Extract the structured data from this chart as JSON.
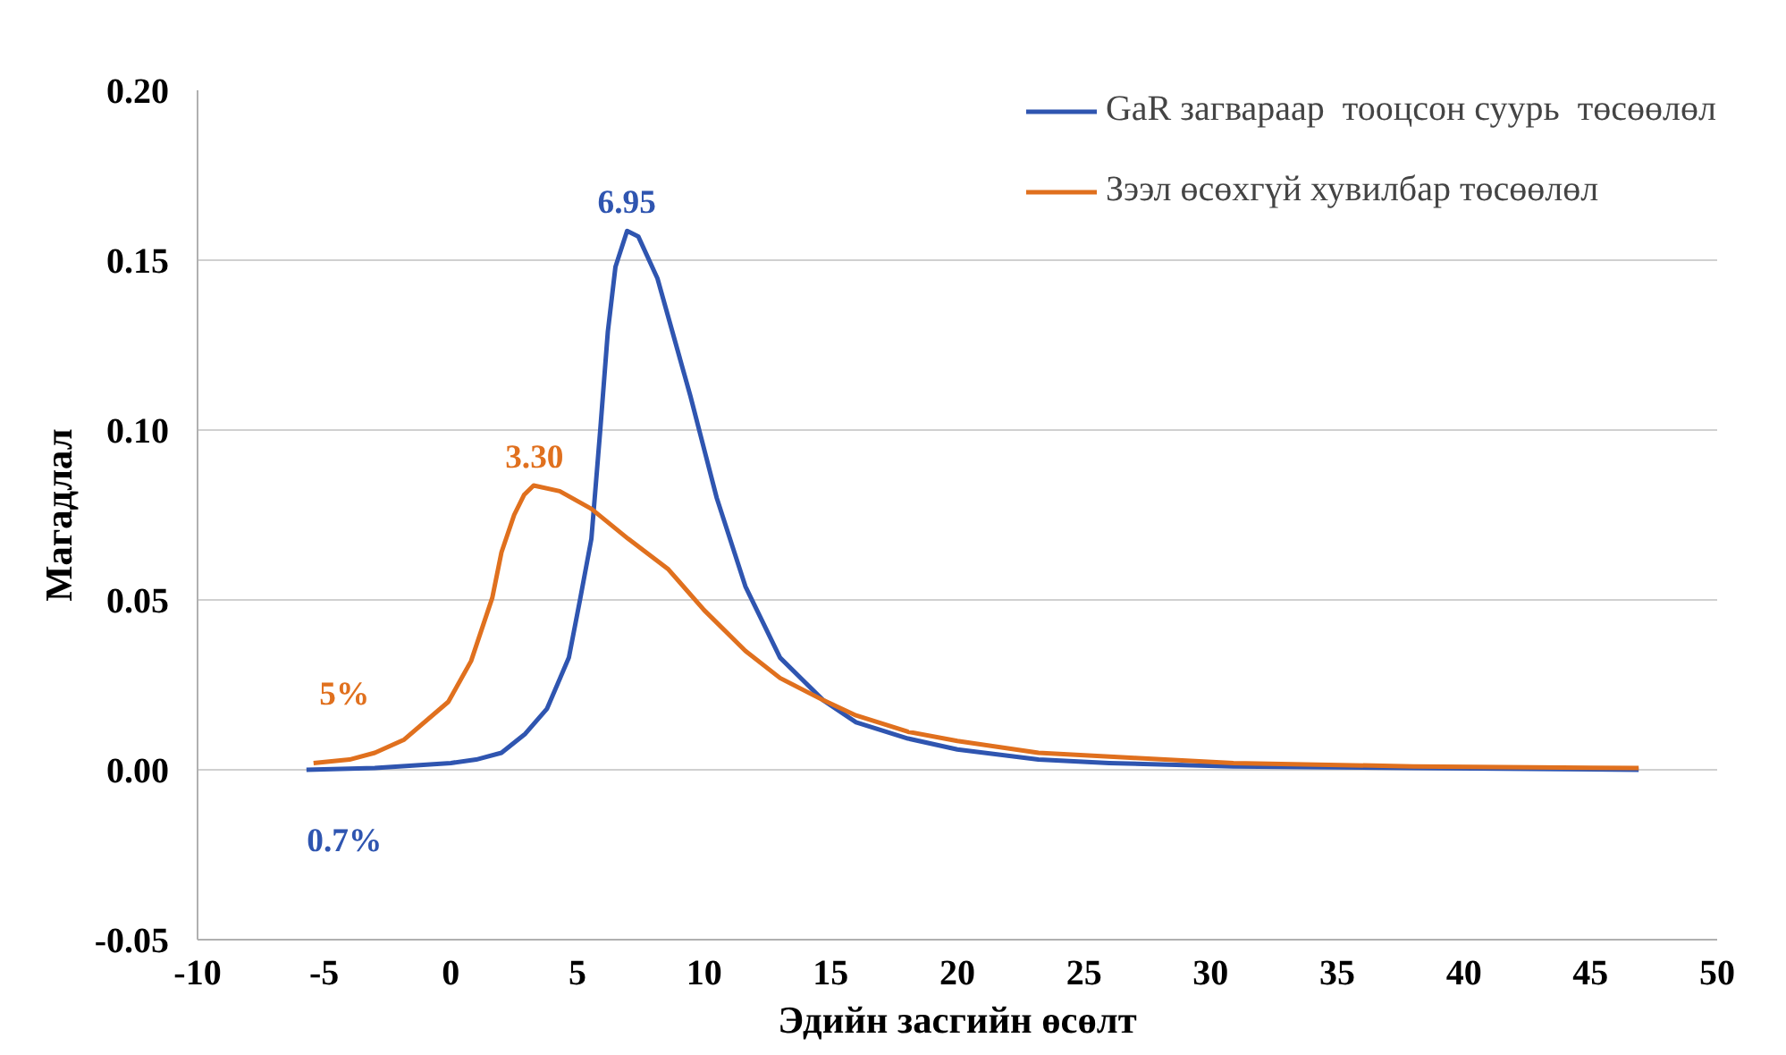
{
  "chart_data": {
    "type": "line",
    "xlabel": "Эдийн засгийн өсөлт",
    "ylabel": "Магадлал",
    "xlim": [
      -10,
      50
    ],
    "xticks": [
      -10,
      -5,
      0,
      5,
      10,
      15,
      20,
      25,
      30,
      35,
      40,
      45,
      50
    ],
    "ylim": [
      -0.05,
      0.2
    ],
    "yticks": [
      {
        "value": -0.05,
        "label": "-0.05"
      },
      {
        "value": 0,
        "label": "0.00"
      },
      {
        "value": 0.05,
        "label": "0.05"
      },
      {
        "value": 0.1,
        "label": "0.10"
      },
      {
        "value": 0.15,
        "label": "0.15"
      },
      {
        "value": 0.2,
        "label": "0.20"
      }
    ],
    "grid": "y",
    "legend": "top right",
    "series": [
      {
        "name": "GaR загвараар  тооцсон суурь  төсөөлөл",
        "color": "#2f55b0",
        "x": [
          -5.7,
          -3,
          0,
          1,
          2,
          2.94,
          3.8,
          4.66,
          5.1,
          5.55,
          5.9,
          6.2,
          6.5,
          6.96,
          7.4,
          8.16,
          9.46,
          10.5,
          11.63,
          13,
          14.7,
          16,
          18.05,
          20,
          23.2,
          26,
          30.9,
          38,
          46.9
        ],
        "values": [
          0.0,
          0.0005,
          0.002,
          0.003,
          0.005,
          0.0106,
          0.018,
          0.033,
          0.05,
          0.068,
          0.1,
          0.129,
          0.148,
          0.1586,
          0.157,
          0.1446,
          0.11,
          0.08,
          0.054,
          0.033,
          0.0205,
          0.014,
          0.0092,
          0.006,
          0.003,
          0.002,
          0.001,
          0.0005,
          0.0
        ]
      },
      {
        "name": "Зээл өсөхгүй хувилбар төсөөлөл",
        "color": "#e0701e",
        "x": [
          -5.42,
          -4,
          -3,
          -1.84,
          -0.1,
          0.8,
          1.64,
          2.0,
          2.5,
          2.9,
          3.27,
          4.3,
          5.55,
          7,
          8.59,
          10,
          11.63,
          13,
          14.7,
          16,
          18.05,
          20,
          23.2,
          27,
          30.9,
          38,
          46.9
        ],
        "values": [
          0.002,
          0.003,
          0.005,
          0.0089,
          0.02,
          0.032,
          0.0507,
          0.064,
          0.075,
          0.081,
          0.0837,
          0.082,
          0.0768,
          0.068,
          0.059,
          0.047,
          0.035,
          0.027,
          0.0205,
          0.016,
          0.0112,
          0.0085,
          0.005,
          0.0035,
          0.002,
          0.001,
          0.0005
        ]
      }
    ],
    "annotations": [
      {
        "text": "6.95",
        "x": 6.95,
        "y": 0.1586
      },
      {
        "text": "3.30",
        "x": 3.3,
        "y": 0.0837
      },
      "5%",
      "0.7%"
    ]
  }
}
